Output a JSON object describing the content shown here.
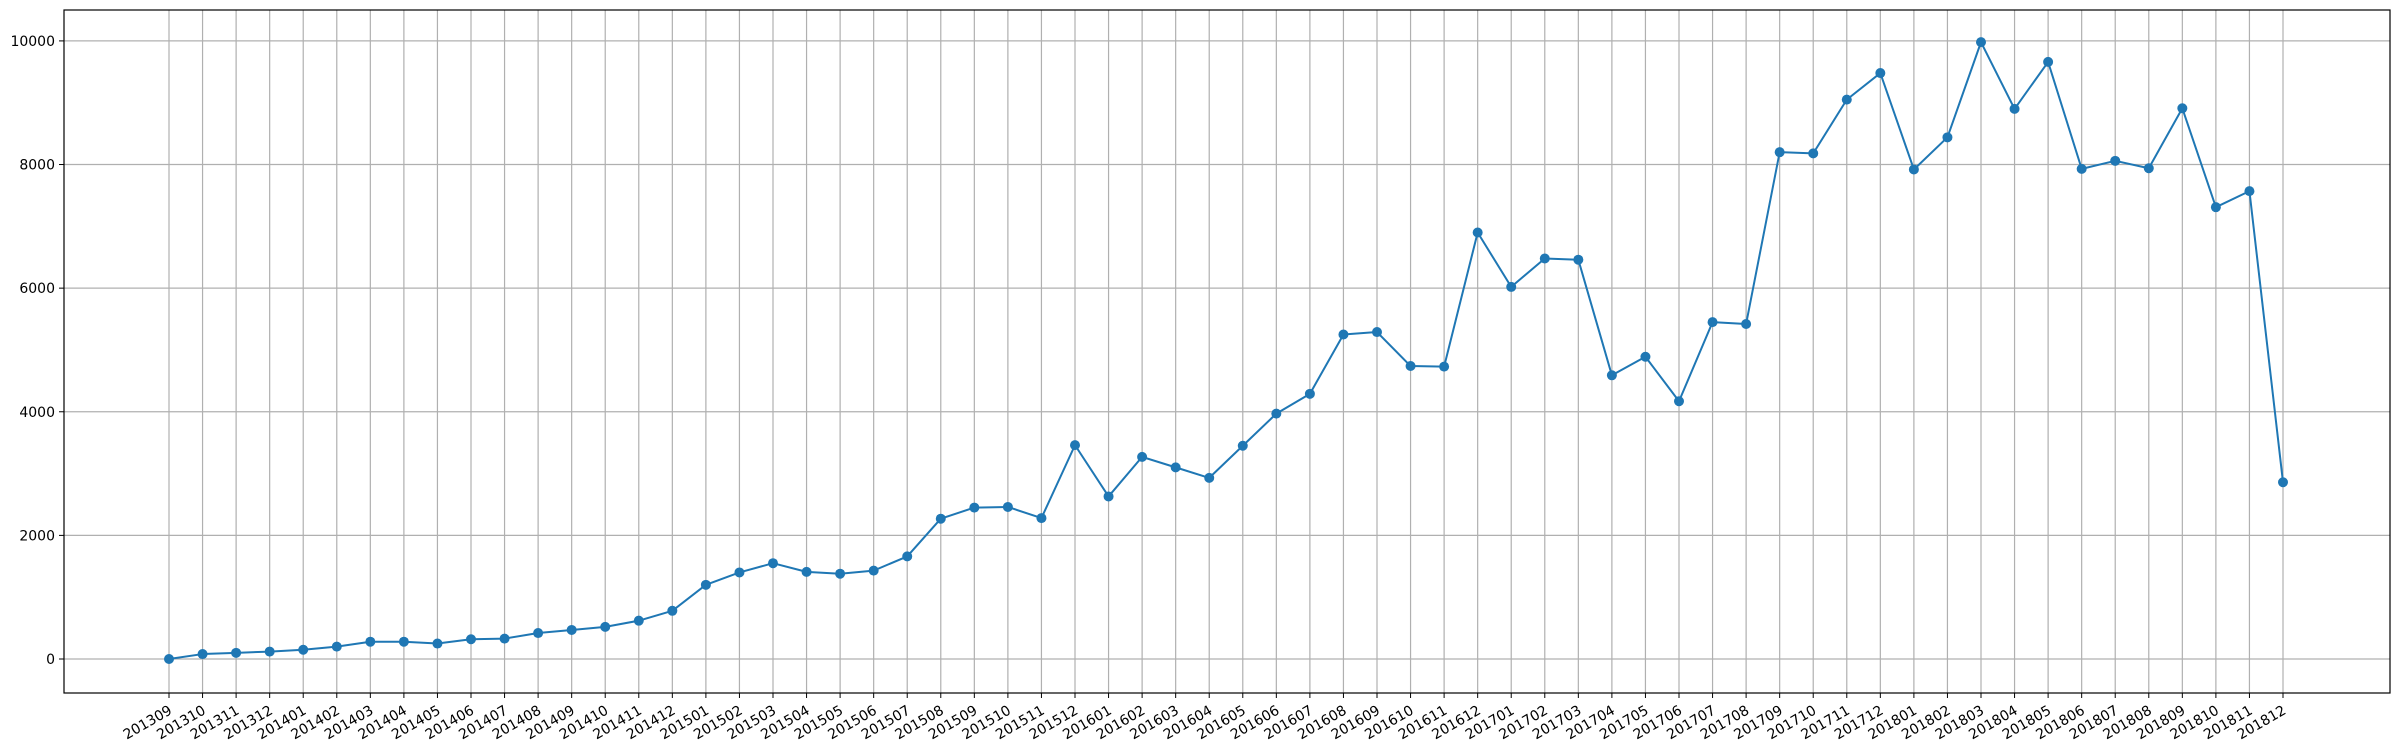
{
  "chart_data": {
    "type": "line",
    "title": "",
    "xlabel": "",
    "ylabel": "",
    "categories": [
      "201309",
      "201310",
      "201311",
      "201312",
      "201401",
      "201402",
      "201403",
      "201404",
      "201405",
      "201406",
      "201407",
      "201408",
      "201409",
      "201410",
      "201411",
      "201412",
      "201501",
      "201502",
      "201503",
      "201504",
      "201505",
      "201506",
      "201507",
      "201508",
      "201509",
      "201510",
      "201511",
      "201512",
      "201601",
      "201602",
      "201603",
      "201604",
      "201605",
      "201606",
      "201607",
      "201608",
      "201609",
      "201610",
      "201611",
      "201612",
      "201701",
      "201702",
      "201703",
      "201704",
      "201705",
      "201706",
      "201707",
      "201708",
      "201709",
      "201710",
      "201711",
      "201712",
      "201801",
      "201802",
      "201803",
      "201804",
      "201805",
      "201806",
      "201807",
      "201808",
      "201809",
      "201810",
      "201811",
      "201812"
    ],
    "series": [
      {
        "color": "#1f77b4",
        "values": [
          0,
          80,
          100,
          120,
          150,
          200,
          280,
          280,
          250,
          320,
          330,
          420,
          470,
          520,
          620,
          780,
          1200,
          1400,
          1550,
          1410,
          1380,
          1430,
          1660,
          2270,
          2450,
          2460,
          2280,
          3460,
          2630,
          3270,
          3100,
          2930,
          3450,
          3970,
          4290,
          5250,
          5290,
          4740,
          4730,
          6900,
          6020,
          6480,
          6460,
          4590,
          4890,
          4170,
          5450,
          5420,
          8200,
          8180,
          9050,
          9480,
          7920,
          8440,
          9980,
          8900,
          9660,
          7930,
          8060,
          7940,
          8910,
          7310,
          7570,
          2860
        ]
      }
    ],
    "ylim": [
      -550,
      10500
    ],
    "yticks": [
      0,
      2000,
      4000,
      6000,
      8000,
      10000
    ],
    "grid": true,
    "legend": "none",
    "x_tick_rotation": -30,
    "colors": {
      "line": "#1f77b4",
      "grid": "#b0b0b0",
      "axes": "#000000"
    }
  }
}
